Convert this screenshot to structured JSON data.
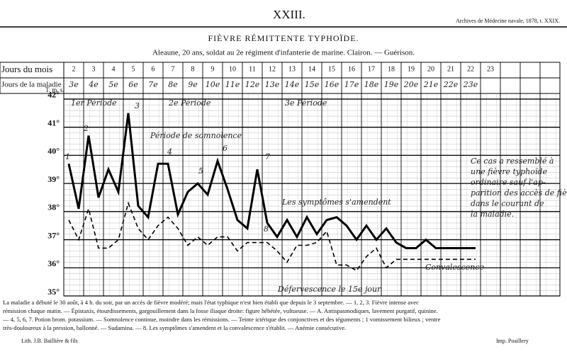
{
  "header": {
    "page_number": "XXIII.",
    "journal": "Archives de Médecine navale, 1878, t. XXIX."
  },
  "chart_data": {
    "type": "line",
    "title": "FIÈVRE RÉMITTENTE TYPHOÏDE.",
    "subtitle": "Aleaune, 20 ans, soldat au 2e régiment d'infanterie de marine. Clairon. — Guérison.",
    "row_labels": [
      "Jours du mois",
      "Jours de la maladie"
    ],
    "scale_label": "T. m. s.",
    "categories": [
      "2",
      "3",
      "4",
      "5",
      "6",
      "7",
      "8",
      "9",
      "10",
      "11",
      "12",
      "13",
      "14",
      "15",
      "16",
      "17",
      "18",
      "19",
      "20",
      "21",
      "22",
      "23"
    ],
    "disease_days": [
      "3e",
      "4e",
      "5e",
      "6e",
      "7e",
      "8e",
      "9e",
      "10e",
      "11e",
      "12e",
      "13e",
      "14e",
      "15e",
      "16e",
      "17e",
      "18e",
      "19e",
      "20e",
      "21e",
      "22e",
      "23e",
      null
    ],
    "x": [
      2.25,
      2.75,
      3.25,
      3.75,
      4.25,
      4.75,
      5.25,
      5.75,
      6.25,
      6.75,
      7.25,
      7.75,
      8.25,
      8.75,
      9.25,
      9.75,
      10.25,
      10.75,
      11.25,
      11.75,
      12.25,
      12.75,
      13.25,
      13.75,
      14.25,
      14.75,
      15.25,
      15.75,
      16.25,
      16.75,
      17.25,
      17.75,
      18.25,
      18.75,
      19.25,
      19.75,
      20.25,
      20.75,
      21.25,
      21.75,
      22.25,
      22.75
    ],
    "xlim": [
      2,
      27
    ],
    "ylim": [
      35,
      42.2
    ],
    "yticks": [
      {
        "value": 35,
        "label": "35°"
      },
      {
        "value": 36,
        "label": "36°"
      },
      {
        "value": 37,
        "label": "37°"
      },
      {
        "value": 38,
        "label": "38°"
      },
      {
        "value": 39,
        "label": "39°"
      },
      {
        "value": 40,
        "label": "40°"
      },
      {
        "value": 41,
        "label": "41°"
      },
      {
        "value": 42,
        "label": "42°"
      }
    ],
    "grid": true,
    "series": [
      {
        "color": "#000000",
        "style": "solid",
        "values": [
          39.7,
          38.1,
          40.7,
          38.5,
          39.5,
          38.7,
          41.5,
          38.2,
          37.8,
          39.7,
          39.7,
          37.9,
          38.7,
          39.0,
          38.6,
          39.8,
          38.8,
          37.7,
          37.4,
          39.5,
          37.6,
          37.1,
          37.7,
          37.1,
          37.8,
          37.2,
          37.7,
          37.8,
          37.5,
          37.0,
          37.5,
          37.0,
          37.4,
          36.9,
          36.7,
          36.7,
          37.0,
          36.7,
          36.7,
          36.7,
          36.7,
          36.7
        ]
      },
      {
        "color": "#000000",
        "style": "dashed",
        "values": [
          37.7,
          37.0,
          38.1,
          36.7,
          36.7,
          37.0,
          38.3,
          37.4,
          37.0,
          37.5,
          37.8,
          37.4,
          36.8,
          37.1,
          36.8,
          37.1,
          37.1,
          36.6,
          36.9,
          36.9,
          36.9,
          36.6,
          36.2,
          36.8,
          36.8,
          36.9,
          37.3,
          36.1,
          36.1,
          35.9,
          36.4,
          36.7,
          36.0,
          36.3,
          36.3,
          36.3,
          36.3,
          36.3,
          36.3,
          36.3,
          36.3,
          36.3
        ]
      }
    ],
    "annotations": [
      "1er Période",
      "2e Période",
      "3e Période",
      "Période de somnolence",
      "Les symptômes s'amendent",
      "Défervescence le 15e jour",
      "Convalescence",
      "Ce cas a ressemblé à",
      "une fièvre typhoïde",
      "ordinaire sauf l'ap-",
      "parition des accès de fièvre",
      "dans le courant de",
      "la maladie.",
      "1",
      "2",
      "3",
      "4",
      "5",
      "6",
      "7",
      "8"
    ]
  },
  "caption": [
    "La maladie a débuté le 30 août, à 4 h. du soir, par un accès de fièvre modéré; mais l'état typhique n'est bien établi que depuis le 3 septembre. — 1, 2, 3. Fièvre intense avec",
    "rémission chaque matin. — Épistaxis, étourdissements, gargouillement dans la fosse iliaque droite: figure hébétée, vultueuse. — A. Antispasmodiques, lavement purgatif, quinine.",
    "— 4, 5, 6, 7. Potion brom. potassium. — Somnolence continue, moindre dans les rémissions. — Teinte ictérique des conjonctives et des téguments ; 1 vomissement bilieux ; ventre",
    "très-douloureux à la pression, ballonné. — Sudamina. — 8. Les symptômes s'amendent et la convalescence s'établit. — Anémie consécutive."
  ],
  "footer": {
    "left": "Lith. J.B. Baillière & fils",
    "right": "Imp. Poaillery"
  }
}
